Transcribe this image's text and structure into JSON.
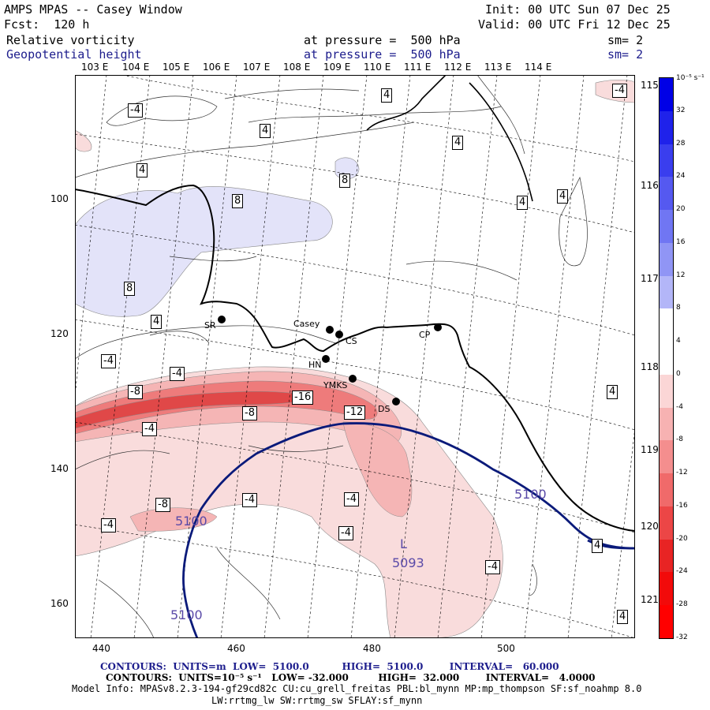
{
  "header": {
    "title": "AMPS MPAS -- Casey Window",
    "init": "Init: 00 UTC Sun 07 Dec 25",
    "forecast": "Fcst:  120 h",
    "valid": "Valid: 00 UTC Fri 12 Dec 25",
    "field1_name": "Relative vorticity",
    "field1_level": "at pressure =  500 hPa",
    "field1_sm": "sm= 2",
    "field2_name": "Geopotential height",
    "field2_level": "at pressure =  500 hPa",
    "field2_sm": "sm= 2"
  },
  "map": {
    "lon_labels_top": [
      "103 E",
      "104 E",
      "105 E",
      "106 E",
      "107 E",
      "108 E",
      "109 E",
      "110 E",
      "111 E",
      "112 E",
      "113 E",
      "114 E"
    ],
    "lon_labels_right": [
      "115 E",
      "116 E",
      "117 E",
      "118 E",
      "119 E",
      "120 E",
      "121 E"
    ],
    "x_ticks": [
      "440",
      "460",
      "480",
      "500"
    ],
    "y_ticks": [
      "100",
      "120",
      "140",
      "160"
    ],
    "stations": [
      {
        "id": "SR",
        "label": "SR"
      },
      {
        "id": "Casey",
        "label": "Casey"
      },
      {
        "id": "CS",
        "label": "CS"
      },
      {
        "id": "CP",
        "label": "CP"
      },
      {
        "id": "HN",
        "label": "HN"
      },
      {
        "id": "YMKS",
        "label": "YMKS"
      },
      {
        "id": "DS",
        "label": "DS"
      }
    ],
    "vorticity_labels": [
      "-4",
      "4",
      "4",
      "4",
      "4",
      "8",
      "4",
      "4",
      "4",
      "8",
      "8",
      "4",
      "-4",
      "-4",
      "-8",
      "-16",
      "-8",
      "-12",
      "-4",
      "4",
      "-8",
      "-4",
      "-4",
      "-4",
      "-4",
      "-4",
      "4",
      "4"
    ],
    "height_labels": [
      "5100",
      "5100",
      "5100",
      "5093"
    ],
    "low_marker": "L",
    "colors": {
      "height_contour": "#0a1a7a",
      "coast": "#000000",
      "neg_light": "#f9dcdc",
      "neg_mid": "#f5b5b5",
      "neg_strong": "#ee7b7b",
      "neg_core": "#e04848",
      "pos_light": "#e3e3f9"
    }
  },
  "colorbar": {
    "unit": "10⁻⁵ s⁻¹",
    "labels": [
      "32",
      "28",
      "24",
      "20",
      "16",
      "12",
      "8",
      "4",
      "0",
      "-4",
      "-8",
      "-12",
      "-16",
      "-20",
      "-24",
      "-28",
      "-32"
    ],
    "colors": [
      "#0000e6",
      "#1f22ea",
      "#3a3eee",
      "#5559f0",
      "#7076f3",
      "#9095f5",
      "#b3b6f8",
      "#ffffff",
      "#ffffff",
      "#fbd6d6",
      "#f7b2b2",
      "#f48e8e",
      "#f06a6a",
      "#ec4646",
      "#e82424",
      "#f20a0a",
      "#ff0000"
    ]
  },
  "footer": {
    "line1": "CONTOURS:  UNITS=m  LOW=  5100.0          HIGH=  5100.0        INTERVAL=   60.000",
    "line2": "CONTOURS:  UNITS=10⁻⁵ s⁻¹   LOW= -32.000         HIGH=  32.000        INTERVAL=   4.0000",
    "line3": "Model Info: MPASv8.2.3-194-gf29cd82c CU:cu_grell_freitas PBL:bl_mynn MP:mp_thompson SF:sf_noahmp 8.0",
    "line4": "LW:rrtmg_lw SW:rrtmg_sw SFLAY:sf_mynn"
  }
}
